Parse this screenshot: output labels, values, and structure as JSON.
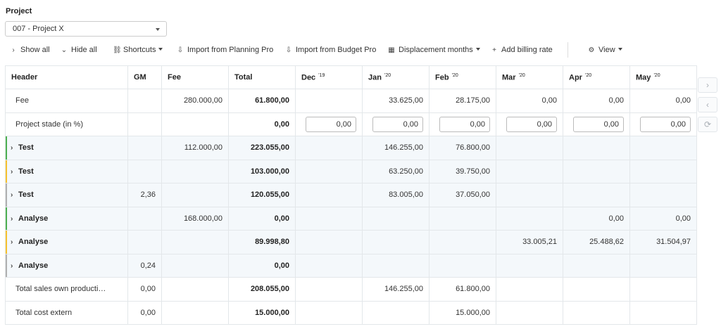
{
  "project": {
    "label": "Project",
    "selected": "007 - Project X"
  },
  "toolbar": {
    "show_all": "Show all",
    "hide_all": "Hide all",
    "shortcuts": "Shortcuts",
    "import_planning": "Import from Planning Pro",
    "import_budget": "Import from Budget Pro",
    "displacement": "Displacement months",
    "add_billing": "Add billing rate",
    "view": "View"
  },
  "columns": {
    "header": "Header",
    "gm": "GM",
    "fee": "Fee",
    "total": "Total",
    "months": [
      {
        "name": "Dec",
        "year": "'19"
      },
      {
        "name": "Jan",
        "year": "'20"
      },
      {
        "name": "Feb",
        "year": "'20"
      },
      {
        "name": "Mar",
        "year": "'20"
      },
      {
        "name": "Apr",
        "year": "'20"
      },
      {
        "name": "May",
        "year": "'20"
      }
    ]
  },
  "rows": [
    {
      "label": "Fee",
      "gm": "",
      "fee": "280.000,00",
      "total": "61.800,00",
      "months": [
        "",
        "33.625,00",
        "28.175,00",
        "0,00",
        "0,00",
        "0,00"
      ]
    },
    {
      "label": "Project stade (in %)",
      "gm": "",
      "fee": "",
      "total": "0,00",
      "months": [
        "0,00",
        "0,00",
        "0,00",
        "0,00",
        "0,00",
        "0,00"
      ]
    },
    {
      "label": "Test",
      "gm": "",
      "fee": "112.000,00",
      "total": "223.055,00",
      "months": [
        "",
        "146.255,00",
        "76.800,00",
        "",
        "",
        ""
      ],
      "stripe": "green"
    },
    {
      "label": "Test",
      "gm": "",
      "fee": "",
      "total": "103.000,00",
      "months": [
        "",
        "63.250,00",
        "39.750,00",
        "",
        "",
        ""
      ],
      "stripe": "yellow"
    },
    {
      "label": "Test",
      "gm": "2,36",
      "fee": "",
      "total": "120.055,00",
      "months": [
        "",
        "83.005,00",
        "37.050,00",
        "",
        "",
        ""
      ],
      "stripe": "gray"
    },
    {
      "label": "Analyse",
      "gm": "",
      "fee": "168.000,00",
      "total": "0,00",
      "months": [
        "",
        "",
        "",
        "",
        "0,00",
        "0,00"
      ],
      "stripe": "green"
    },
    {
      "label": "Analyse",
      "gm": "",
      "fee": "",
      "total": "89.998,80",
      "months": [
        "",
        "",
        "",
        "33.005,21",
        "25.488,62",
        "31.504,97"
      ],
      "stripe": "yellow"
    },
    {
      "label": "Analyse",
      "gm": "0,24",
      "fee": "",
      "total": "0,00",
      "months": [
        "",
        "",
        "",
        "",
        "",
        ""
      ],
      "stripe": "gray"
    },
    {
      "label": "Total sales own producti…",
      "gm": "0,00",
      "fee": "",
      "total": "208.055,00",
      "months": [
        "",
        "146.255,00",
        "61.800,00",
        "",
        "",
        ""
      ]
    },
    {
      "label": "Total cost extern",
      "gm": "0,00",
      "fee": "",
      "total": "15.000,00",
      "months": [
        "",
        "",
        "15.000,00",
        "",
        "",
        ""
      ]
    }
  ],
  "colors": {
    "green": "#4caf50",
    "yellow": "#f5c12e",
    "gray": "#b0b0b0",
    "group_bg": "#f4f8fb"
  },
  "icons": {
    "next": "chevron-right-icon",
    "prev": "chevron-left-icon",
    "refresh": "refresh-icon"
  }
}
